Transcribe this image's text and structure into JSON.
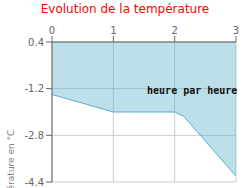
{
  "chart_data": {
    "type": "area",
    "title": "Evolution de la température",
    "ylabel": "Température en °C",
    "annotations": [
      {
        "text": "heure par heure",
        "x": 1.55,
        "y": -1.15
      }
    ],
    "x": [
      0,
      1,
      2,
      2.15,
      3
    ],
    "values": [
      -1.4,
      -2.0,
      -2.0,
      -2.15,
      -4.2
    ],
    "color": "#5aafc8",
    "xlim": [
      0,
      3
    ],
    "ylim": [
      -4.4,
      0.4
    ],
    "xticks": [
      0,
      1,
      2,
      3
    ],
    "yticks": [
      0.4,
      -1.2,
      -2.8,
      -4.4
    ],
    "grid": true
  }
}
